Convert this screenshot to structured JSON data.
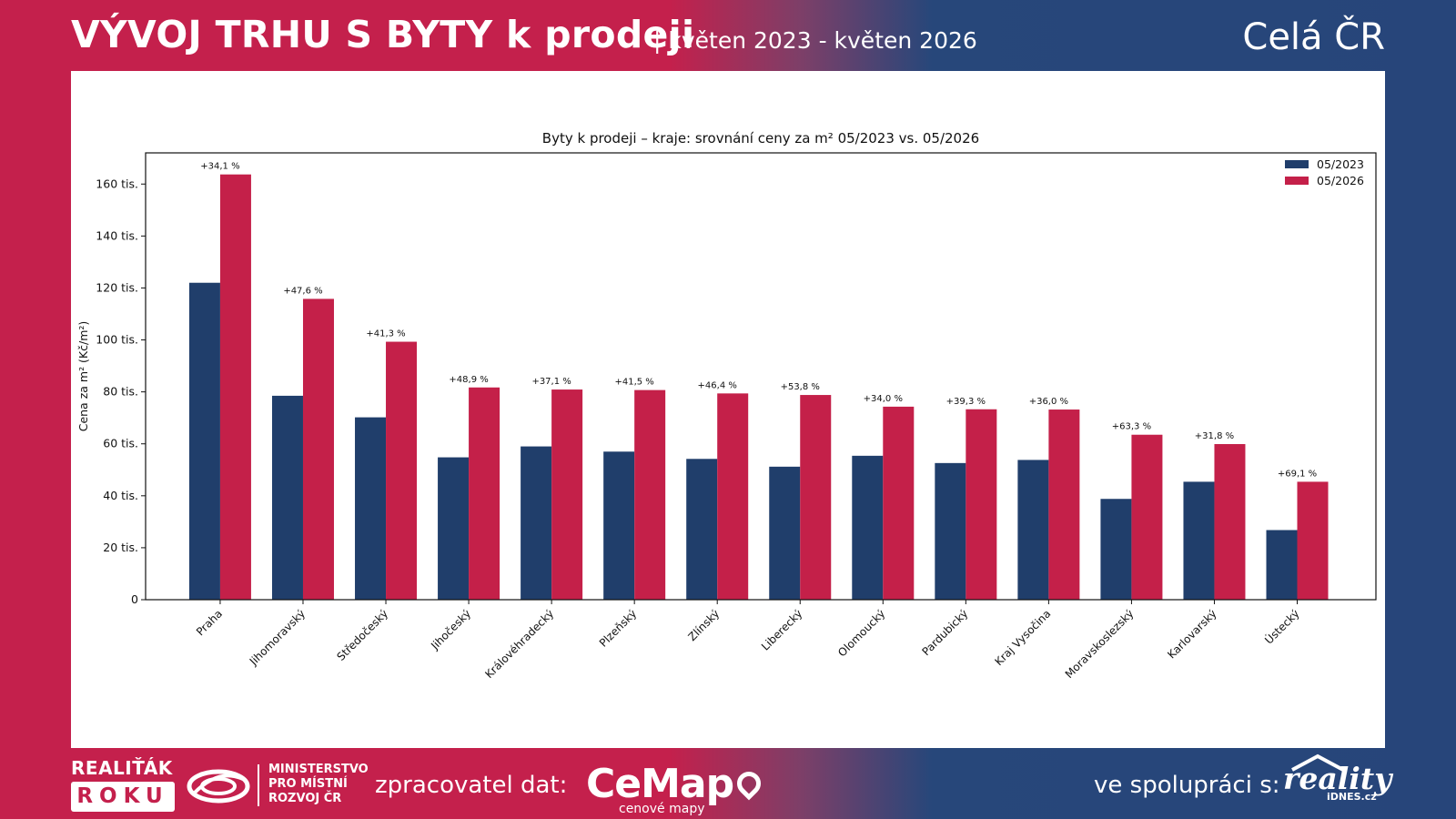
{
  "header": {
    "title": "VÝVOJ TRHU S BYTY k prodeji",
    "subtitle": "| květen 2023 - květen 2026",
    "region": "Celá ČR"
  },
  "footer": {
    "realitak_top": "REALIŤÁK",
    "realitak_bottom": "ROKU",
    "ministry_line1": "MINISTERSTVO",
    "ministry_line2": "PRO MÍSTNÍ",
    "ministry_line3": "ROZVOJ ČR",
    "processor_label": "zpracovatel dat:",
    "cemap_logo": "CeMap",
    "cemap_sub": "cenové mapy",
    "cooperation_label": "ve spolupráci s:",
    "reality_logo": "reality",
    "reality_sub": "iDNES.cz"
  },
  "colors": {
    "series_2023": "#203e6b",
    "series_2026": "#c42049",
    "header_red": "#c4204c",
    "header_blue": "#27457a"
  },
  "chart_data": {
    "type": "bar",
    "title": "Byty k prodeji – kraje: srovnání ceny za m² 05/2023 vs. 05/2026",
    "xlabel": "",
    "ylabel": "Cena za m² (Kč/m²)",
    "ylim": [
      0,
      172000
    ],
    "yticks": [
      0,
      20000,
      40000,
      60000,
      80000,
      100000,
      120000,
      140000,
      160000
    ],
    "ytick_labels": [
      "0",
      "20 tis.",
      "40 tis.",
      "60 tis.",
      "80 tis.",
      "100 tis.",
      "120 tis.",
      "140 tis.",
      "160 tis."
    ],
    "legend_position": "top-right",
    "grid": false,
    "categories": [
      "Praha",
      "Jihomoravský",
      "Středočeský",
      "Jihočeský",
      "Královéhradecký",
      "Plzeňský",
      "Zlínský",
      "Liberecký",
      "Olomoucký",
      "Pardubický",
      "Kraj Vysočina",
      "Moravskoslezský",
      "Karlovarský",
      "Ústecký"
    ],
    "series": [
      {
        "name": "05/2023",
        "values": [
          122000,
          78500,
          70200,
          54800,
          59000,
          57000,
          54200,
          51200,
          55400,
          52600,
          53800,
          38800,
          45400,
          26800
        ]
      },
      {
        "name": "05/2026",
        "values": [
          163700,
          115800,
          99300,
          81700,
          80900,
          80700,
          79400,
          78800,
          74300,
          73300,
          73200,
          63500,
          59900,
          45400
        ]
      }
    ],
    "annotations": [
      "+34,1 %",
      "+47,6 %",
      "+41,3 %",
      "+48,9 %",
      "+37,1 %",
      "+41,5 %",
      "+46,4 %",
      "+53,8 %",
      "+34,0 %",
      "+39,3 %",
      "+36,0 %",
      "+63,3 %",
      "+31,8 %",
      "+69,1 %"
    ]
  }
}
